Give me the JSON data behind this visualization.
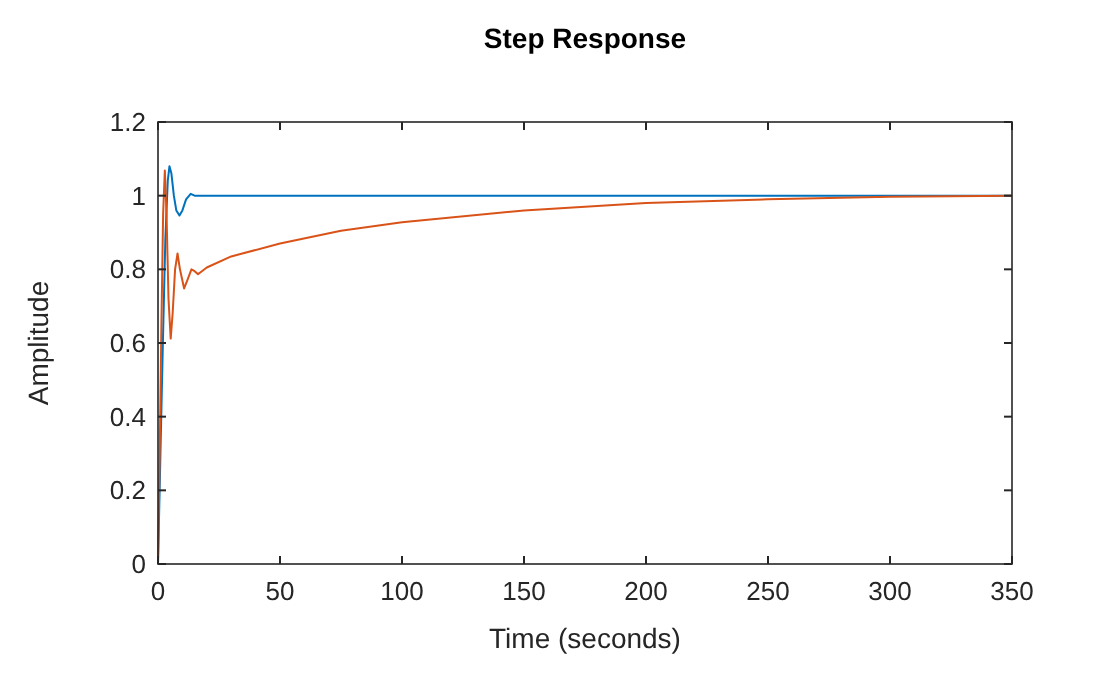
{
  "chart_data": {
    "type": "line",
    "title": "Step Response",
    "xlabel": "Time (seconds)",
    "ylabel": "Amplitude",
    "xlim": [
      0,
      350
    ],
    "ylim": [
      0,
      1.2
    ],
    "xticks": [
      0,
      50,
      100,
      150,
      200,
      250,
      300,
      350
    ],
    "yticks": [
      0,
      0.2,
      0.4,
      0.6,
      0.8,
      1,
      1.2
    ],
    "grid": false,
    "series": [
      {
        "color": "#0072bd",
        "x": [
          0,
          1,
          2,
          3,
          4,
          4.7,
          5.5,
          6.5,
          7.5,
          8.8,
          10,
          11.5,
          13.4,
          15,
          18,
          25,
          50,
          100,
          200,
          350
        ],
        "values": [
          0,
          0.3,
          0.6,
          0.88,
          1.04,
          1.08,
          1.06,
          1.0,
          0.96,
          0.946,
          0.96,
          0.99,
          1.005,
          1.0,
          1.0,
          1.0,
          1.0,
          1.0,
          1.0,
          1.0
        ]
      },
      {
        "color": "#d95319",
        "x": [
          0,
          0.7,
          1.4,
          2.1,
          2.8,
          3.5,
          4.3,
          5.2,
          6,
          7,
          8,
          9,
          10.7,
          12,
          13.7,
          15,
          16.4,
          18,
          20,
          30,
          50,
          75,
          100,
          150,
          200,
          250,
          300,
          350
        ],
        "values": [
          0,
          0.3,
          0.65,
          0.95,
          1.068,
          0.95,
          0.72,
          0.612,
          0.68,
          0.8,
          0.843,
          0.8,
          0.748,
          0.77,
          0.8,
          0.795,
          0.787,
          0.795,
          0.805,
          0.835,
          0.87,
          0.905,
          0.928,
          0.96,
          0.98,
          0.99,
          0.997,
          1.0
        ]
      }
    ]
  }
}
